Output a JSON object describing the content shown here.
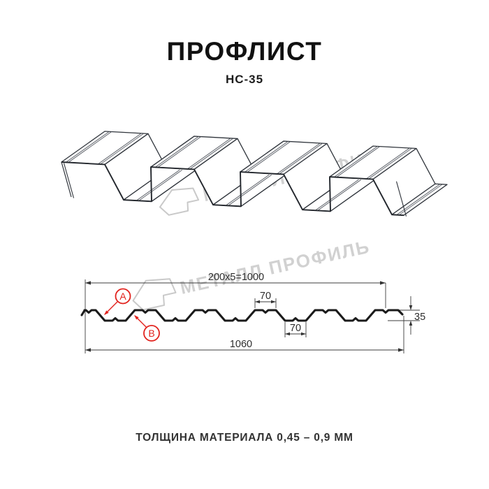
{
  "page": {
    "title": "ПРОФЛИСТ",
    "subtitle": "НС-35",
    "footer_note": "ТОЛЩИНА МАТЕРИАЛА 0,45 – 0,9 ММ"
  },
  "watermark": {
    "brand_text": "МЕТАЛЛ ПРОФИЛЬ",
    "color": "#d1d1d1",
    "logo": "metall-profil-house-logo"
  },
  "drawing_3d": {
    "description": "perspective wireframe of trapezoidal profiled sheet",
    "line_color": "#30353c",
    "groove_color": "#51565e"
  },
  "cross_section": {
    "dim_total_top": "200x5=1000",
    "dim_crest": "70",
    "dim_valley": "70",
    "dim_overall": "1060",
    "dim_height": "35",
    "label_a": "A",
    "label_b": "B",
    "accent_color": "#e2231e",
    "profile_color": "#1b1b1b",
    "dim_color": "#3c3c3c"
  }
}
